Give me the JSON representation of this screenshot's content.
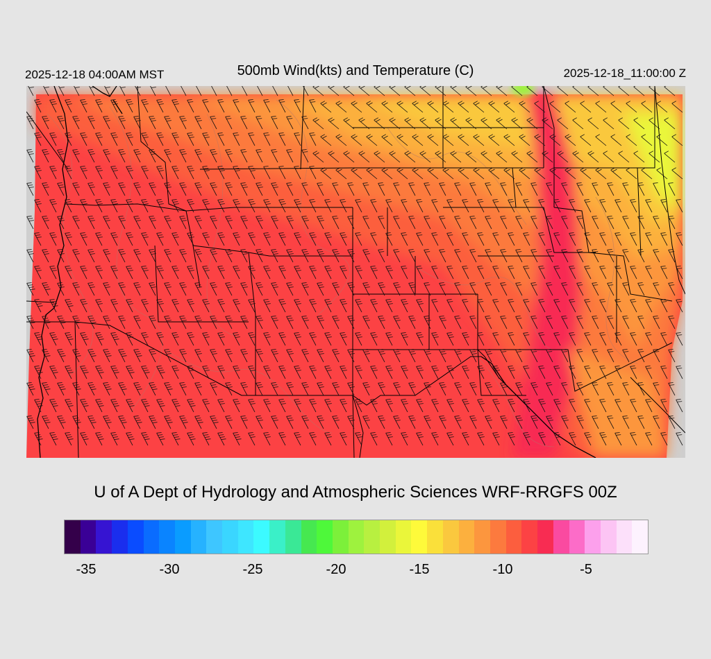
{
  "header": {
    "valid_local": "2025-12-18 04:00AM MST",
    "title": "500mb Wind(kts) and Temperature (C)",
    "valid_utc": "2025-12-18_11:00:00 Z"
  },
  "credit": "U of A Dept of Hydrology and Atmospheric Sciences WRF-RRGFS 00Z",
  "colorbar": {
    "colors": [
      "#34004a",
      "#3a0096",
      "#3614d2",
      "#1a2eee",
      "#0a4cff",
      "#0a6cff",
      "#0a84ff",
      "#0a9cff",
      "#26b2ff",
      "#3ec6ff",
      "#3ad6ff",
      "#3ee6ff",
      "#3cfaff",
      "#3af0c8",
      "#3ae896",
      "#46e850",
      "#4ef83a",
      "#7cf03a",
      "#9ef23e",
      "#b8f040",
      "#d2f03c",
      "#eaf63a",
      "#fefa3a",
      "#fae03a",
      "#fac83e",
      "#fcb03e",
      "#fc963e",
      "#fc7a3e",
      "#fc5e3e",
      "#fc4244",
      "#f82c52",
      "#fa4aa0",
      "#fc6cc8",
      "#fca0ec",
      "#fcc4f4",
      "#fce0fa",
      "#fdf2fe"
    ],
    "tick_labels": [
      "-35",
      "-30",
      "-25",
      "-20",
      "-15",
      "-10",
      "-5"
    ],
    "tick_values": [
      -35,
      -30,
      -25,
      -20,
      -15,
      -10,
      -5
    ],
    "range": [
      -36,
      -1
    ]
  },
  "map": {
    "no_data_color": "#cfcfcf",
    "temperature_field_colors": {
      "coldest": "#fc4244",
      "cold": "#fc5e3e",
      "mid": "#fc7a3e",
      "mild": "#fc963e",
      "warm": "#fcb03e",
      "warmer": "#fac83e",
      "warmest": "#eaf63a",
      "jet_core": "#f82c52",
      "green_spot": "#9ef23e"
    },
    "wind_flow": "northwesterly"
  }
}
